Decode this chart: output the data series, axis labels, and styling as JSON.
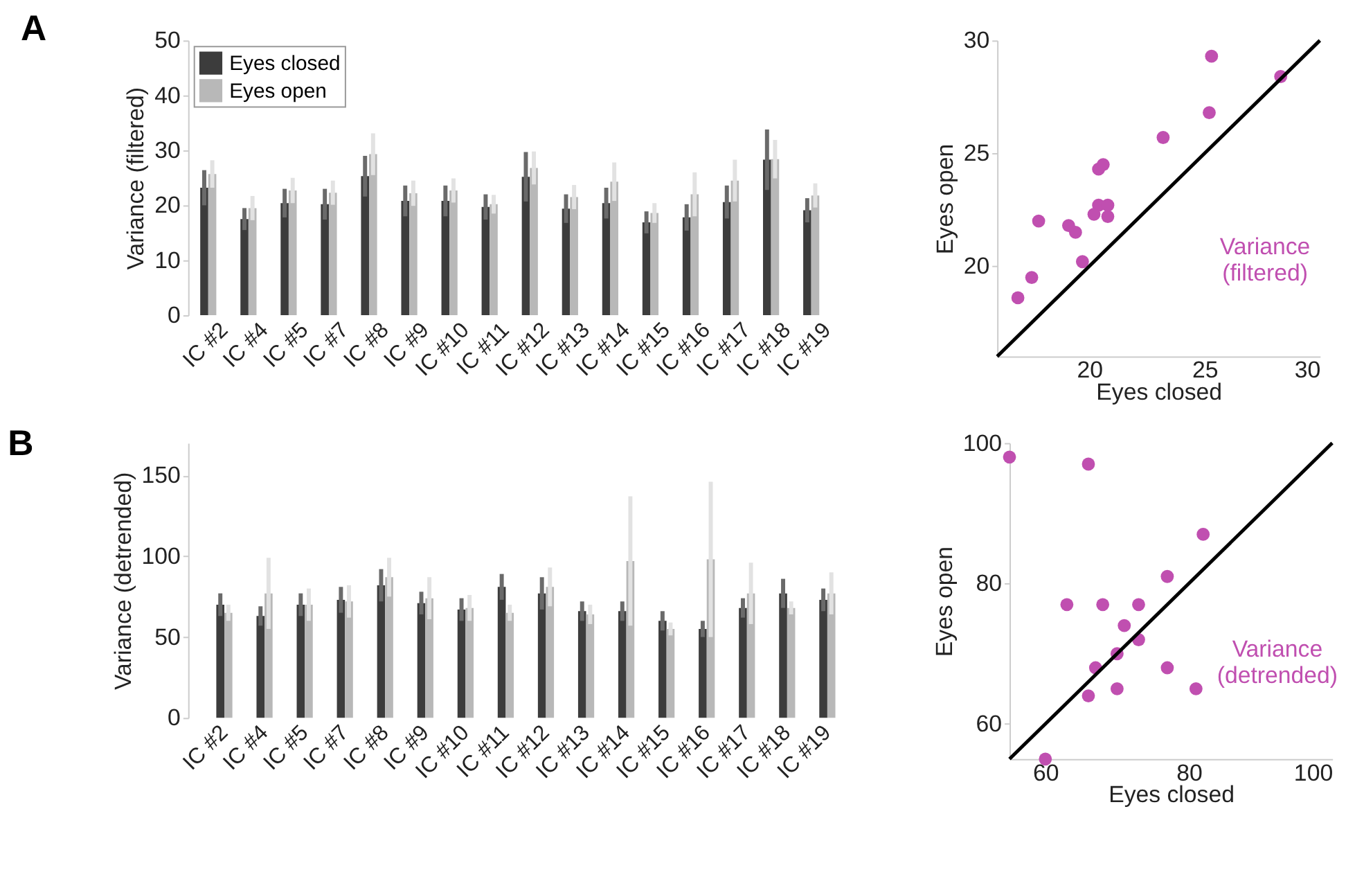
{
  "chart_data": [
    {
      "type": "bar",
      "title": "A",
      "ylabel": "Variance (filtered)",
      "categories": [
        "IC #2",
        "IC #4",
        "IC #5",
        "IC #7",
        "IC #8",
        "IC #9",
        "IC #10",
        "IC #11",
        "IC #12",
        "IC #13",
        "IC #14",
        "IC #15",
        "IC #16",
        "IC #17",
        "IC #18",
        "IC #19"
      ],
      "series": [
        {
          "name": "Eyes closed",
          "color": "#3c3c3c",
          "values": [
            23.2,
            17.5,
            20.4,
            20.2,
            25.3,
            20.8,
            20.8,
            19.7,
            25.2,
            19.4,
            20.4,
            16.9,
            17.8,
            20.6,
            28.3,
            19.1
          ],
          "errors": [
            3.2,
            2,
            2.6,
            2.8,
            3.7,
            2.8,
            2.8,
            2.3,
            4.5,
            2.6,
            2.8,
            2,
            2.4,
            3,
            5.5,
            2.2
          ]
        },
        {
          "name": "Eyes open",
          "color": "#b8b8b8",
          "values": [
            25.7,
            19.5,
            22.7,
            22.3,
            29.3,
            22.2,
            22.7,
            20.2,
            26.8,
            21.5,
            24.3,
            18.6,
            22,
            24.5,
            28.4,
            21.8
          ],
          "errors": [
            2.5,
            2.2,
            2.3,
            2.2,
            3.8,
            2.3,
            2.2,
            1.7,
            3,
            2.2,
            3.5,
            1.8,
            4,
            3.8,
            3.5,
            2.2
          ]
        }
      ],
      "ylim": [
        0,
        50
      ],
      "yticks": [
        0,
        10,
        20,
        30,
        40,
        50
      ],
      "grid": false,
      "legend": "top left"
    },
    {
      "type": "scatter",
      "xlabel": "Eyes closed",
      "ylabel": "Eyes open",
      "annotations": [
        "Variance (filtered)"
      ],
      "series": [
        {
          "type": "scatter",
          "marker": "circle",
          "color": "#c04fb0",
          "x": [
            23.2,
            17.5,
            20.4,
            20.2,
            25.3,
            20.8,
            20.8,
            19.7,
            25.2,
            19.4,
            20.4,
            16.9,
            17.8,
            20.6,
            28.3,
            19.1
          ],
          "values": [
            25.7,
            19.5,
            22.7,
            22.3,
            29.3,
            22.2,
            22.7,
            20.2,
            26.8,
            21.5,
            24.3,
            18.6,
            22,
            24.5,
            28.4,
            21.8
          ]
        },
        {
          "type": "line",
          "color": "#000000",
          "x": [
            16,
            30
          ],
          "values": [
            16,
            30
          ]
        }
      ],
      "xlim": [
        16,
        30
      ],
      "ylim": [
        16,
        30
      ],
      "xticks": [
        20,
        25,
        30
      ],
      "yticks": [
        20,
        25,
        30
      ],
      "grid": false
    },
    {
      "type": "bar",
      "title": "B",
      "ylabel": "Variance (detrended)",
      "categories": [
        "IC #2",
        "IC #4",
        "IC #5",
        "IC #7",
        "IC #8",
        "IC #9",
        "IC #10",
        "IC #11",
        "IC #12",
        "IC #13",
        "IC #14",
        "IC #15",
        "IC #16",
        "IC #17",
        "IC #18",
        "IC #19"
      ],
      "series": [
        {
          "color": "#3c3c3c",
          "values": [
            70,
            63,
            70,
            73,
            82,
            71,
            67,
            81,
            77,
            66,
            66,
            60,
            55,
            68,
            77,
            73
          ],
          "errors": [
            7,
            6,
            7,
            8,
            10,
            7,
            7,
            8,
            10,
            6,
            6,
            6,
            5,
            6,
            9,
            7
          ]
        },
        {
          "color": "#b8b8b8",
          "values": [
            65,
            77,
            70,
            72,
            87,
            74,
            68,
            65,
            81,
            64,
            97,
            55,
            98,
            77,
            68,
            77
          ],
          "errors": [
            5,
            22,
            10,
            10,
            12,
            13,
            8,
            5,
            12,
            6,
            40,
            4,
            48,
            19,
            4,
            13
          ]
        }
      ],
      "ylim": [
        0,
        170
      ],
      "yticks": [
        0,
        50,
        100,
        150
      ],
      "grid": false
    },
    {
      "type": "scatter",
      "xlabel": "Eyes closed",
      "ylabel": "Eyes open",
      "annotations": [
        "Variance (detrended)"
      ],
      "series": [
        {
          "type": "scatter",
          "marker": "circle",
          "color": "#c04fb0",
          "x": [
            70,
            63,
            70,
            73,
            82,
            71,
            67,
            81,
            77,
            66,
            66,
            60,
            55,
            68,
            77,
            73
          ],
          "values": [
            65,
            77,
            70,
            72,
            87,
            74,
            68,
            65,
            81,
            64,
            97,
            55,
            98,
            77,
            68,
            77
          ]
        },
        {
          "type": "line",
          "color": "#000000",
          "x": [
            55,
            100
          ],
          "values": [
            55,
            100
          ]
        }
      ],
      "xlim": [
        55,
        100
      ],
      "ylim": [
        55,
        100
      ],
      "xticks": [
        60,
        80,
        100
      ],
      "yticks": [
        60,
        80,
        100
      ],
      "grid": false
    }
  ]
}
